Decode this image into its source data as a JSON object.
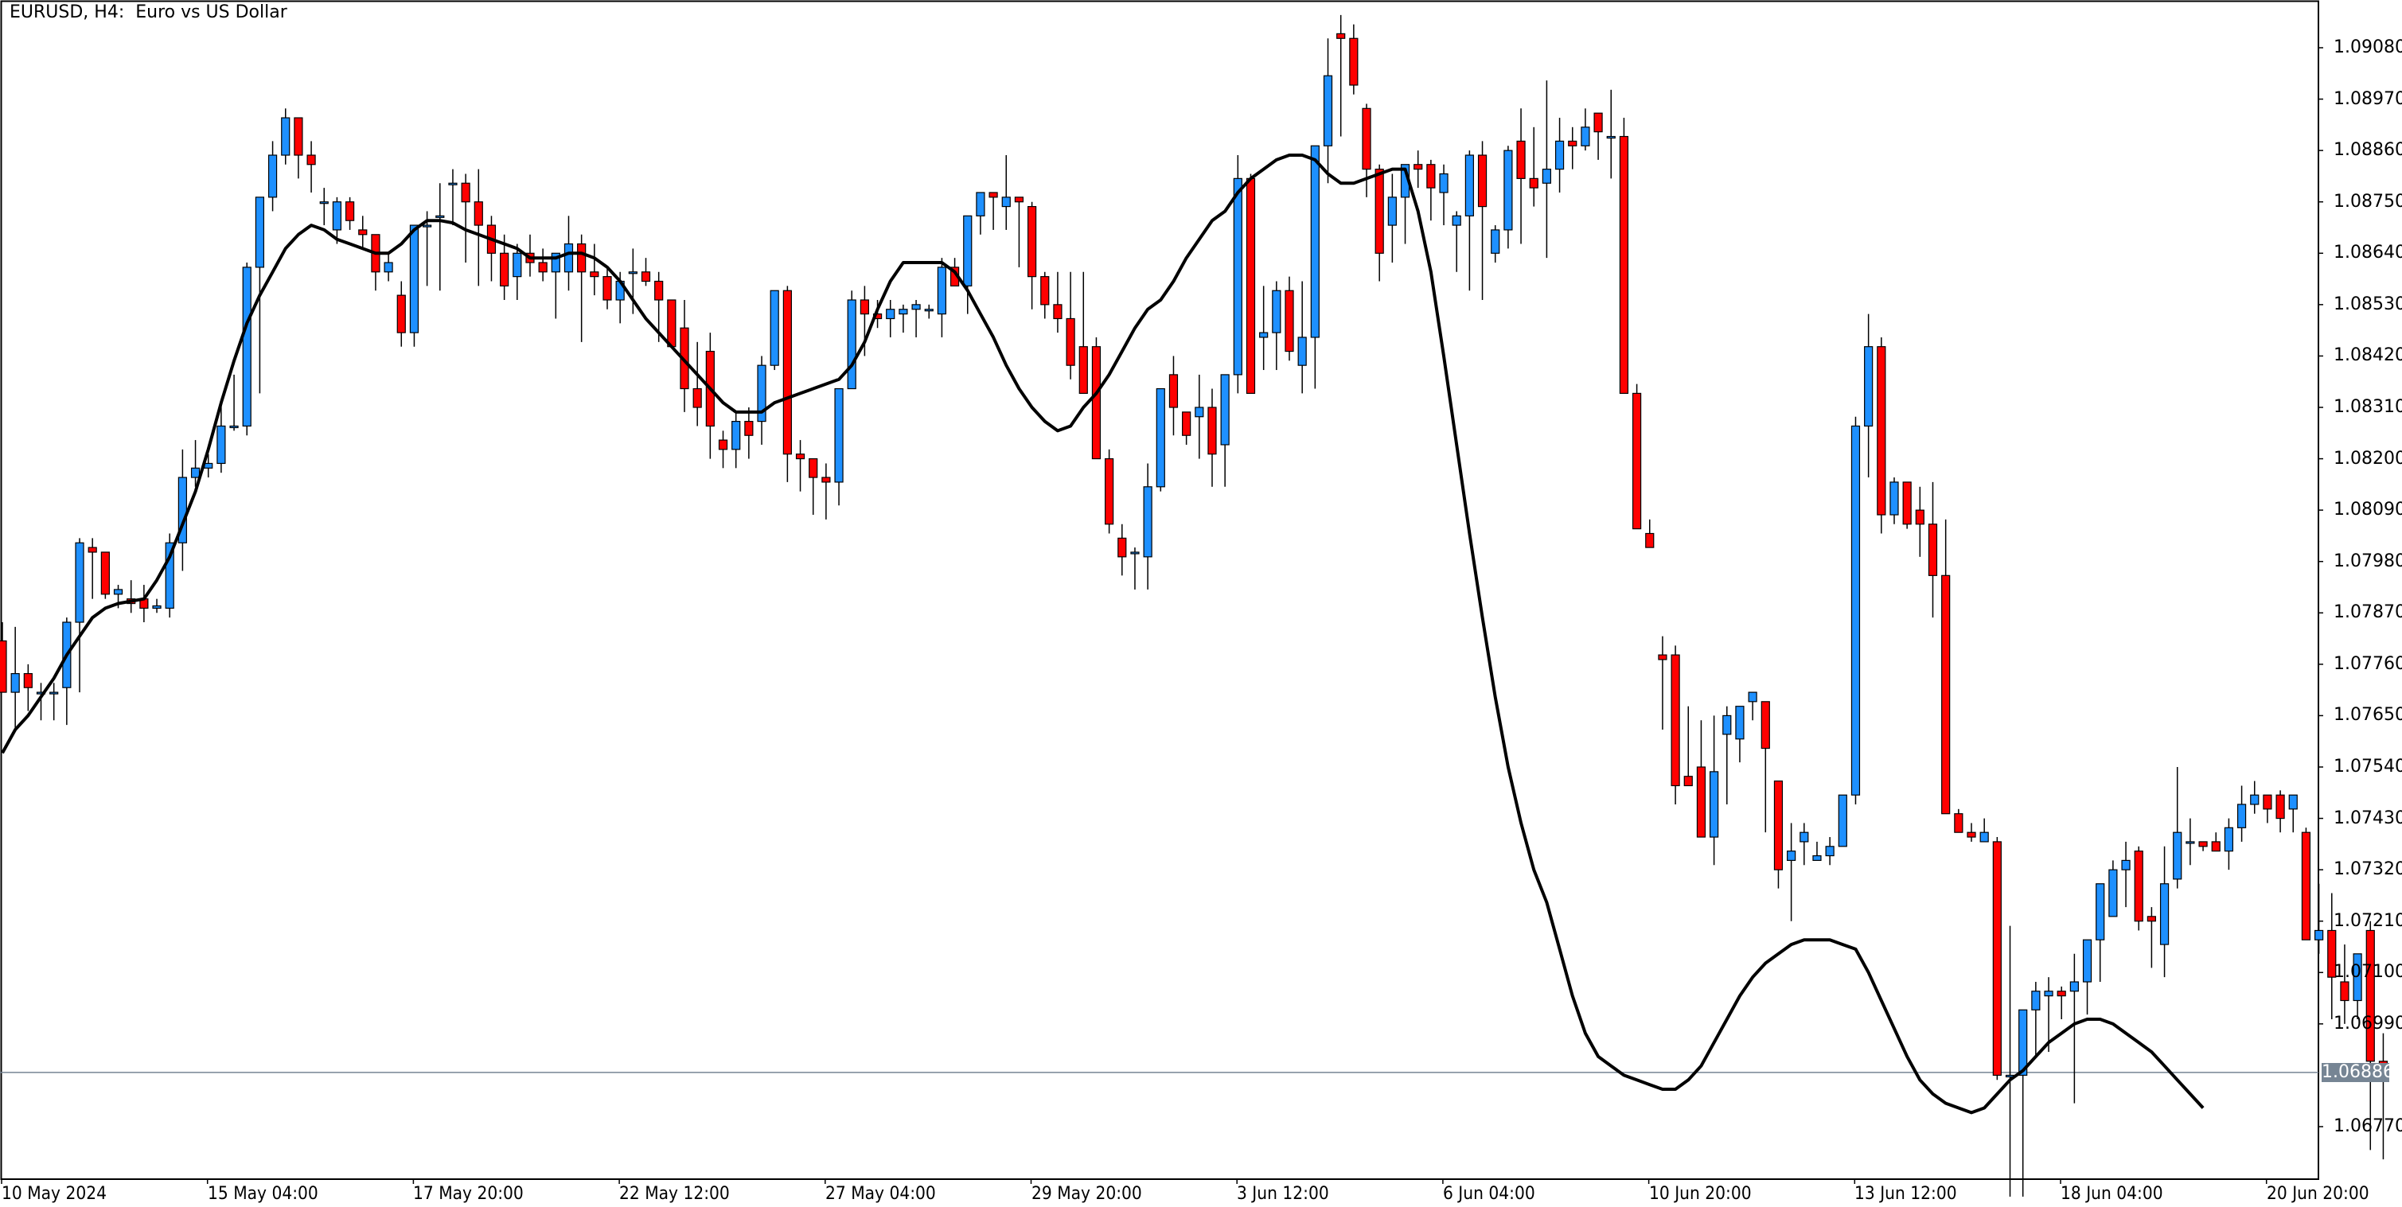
{
  "chart_data": {
    "type": "candlestick",
    "title": "EURUSD, H4:  Euro vs US Dollar",
    "symbol": "EURUSD",
    "timeframe": "H4",
    "description": "Euro vs US Dollar",
    "colors": {
      "bull": "#1E90FF",
      "bear": "#FF0000",
      "wick": "#000000",
      "ma_line": "#000000",
      "current_price_line": "#768594",
      "current_price_badge": "#768594",
      "background": "#FFFFFF"
    },
    "y_axis": {
      "ticks": [
        "1.09080",
        "1.08970",
        "1.08860",
        "1.08750",
        "1.08640",
        "1.08530",
        "1.08420",
        "1.08310",
        "1.08200",
        "1.08090",
        "1.07980",
        "1.07870",
        "1.07760",
        "1.07650",
        "1.07540",
        "1.07430",
        "1.07320",
        "1.07210",
        "1.07100",
        "1.06990",
        "1.06770"
      ],
      "ylim": [
        1.0663,
        1.0916
      ]
    },
    "x_axis": {
      "ticks": [
        "10 May 2024",
        "15 May 04:00",
        "17 May 20:00",
        "22 May 12:00",
        "27 May 04:00",
        "29 May 20:00",
        "3 Jun 12:00",
        "6 Jun 04:00",
        "10 Jun 20:00",
        "13 Jun 12:00",
        "18 Jun 04:00",
        "20 Jun 20:00"
      ]
    },
    "current_price": "1.06886",
    "indicator": {
      "type": "moving_average",
      "color": "#000000"
    },
    "candles": [
      [
        1.0781,
        1.0785,
        1.077,
        1.077
      ],
      [
        1.077,
        1.0784,
        1.0762,
        1.0774
      ],
      [
        1.0774,
        1.0776,
        1.0766,
        1.0771
      ],
      [
        1.077,
        1.0772,
        1.0764,
        1.077
      ],
      [
        1.077,
        1.0772,
        1.0764,
        1.077
      ],
      [
        1.0771,
        1.0786,
        1.0763,
        1.0785
      ],
      [
        1.0785,
        1.0803,
        1.077,
        1.0802
      ],
      [
        1.0801,
        1.0803,
        1.079,
        1.08
      ],
      [
        1.08,
        1.0791,
        1.079,
        1.0791
      ],
      [
        1.0791,
        1.0793,
        1.0788,
        1.0792
      ],
      [
        1.079,
        1.0794,
        1.0787,
        1.0789
      ],
      [
        1.079,
        1.0793,
        1.0785,
        1.0788
      ],
      [
        1.0788,
        1.079,
        1.0787,
        1.07885
      ],
      [
        1.0788,
        1.0804,
        1.0786,
        1.0802
      ],
      [
        1.0802,
        1.0822,
        1.0796,
        1.0816
      ],
      [
        1.0816,
        1.0824,
        1.0814,
        1.0818
      ],
      [
        1.0818,
        1.0821,
        1.0816,
        1.0819
      ],
      [
        1.0819,
        1.0832,
        1.0817,
        1.0827
      ],
      [
        1.0827,
        1.0838,
        1.0826,
        1.0827
      ],
      [
        1.0827,
        1.0862,
        1.0825,
        1.0861
      ],
      [
        1.0861,
        1.0876,
        1.0834,
        1.0876
      ],
      [
        1.0876,
        1.0888,
        1.0873,
        1.0885
      ],
      [
        1.0885,
        1.0895,
        1.0883,
        1.0893
      ],
      [
        1.0893,
        1.0893,
        1.088,
        1.0885
      ],
      [
        1.0885,
        1.0888,
        1.0877,
        1.0883
      ],
      [
        1.0875,
        1.0878,
        1.087,
        1.0875
      ],
      [
        1.0869,
        1.0876,
        1.0866,
        1.0875
      ],
      [
        1.0875,
        1.0876,
        1.0869,
        1.0871
      ],
      [
        1.0869,
        1.0872,
        1.0865,
        1.0868
      ],
      [
        1.0868,
        1.0865,
        1.0856,
        1.086
      ],
      [
        1.086,
        1.0864,
        1.0858,
        1.0862
      ],
      [
        1.0855,
        1.0858,
        1.0844,
        1.0847
      ],
      [
        1.0847,
        1.087,
        1.0844,
        1.087
      ],
      [
        1.087,
        1.0873,
        1.0857,
        1.087
      ],
      [
        1.0872,
        1.0879,
        1.0856,
        1.0872
      ],
      [
        1.0879,
        1.0882,
        1.087,
        1.0879
      ],
      [
        1.0879,
        1.0881,
        1.0862,
        1.0875
      ],
      [
        1.0875,
        1.0882,
        1.0857,
        1.087
      ],
      [
        1.087,
        1.0872,
        1.0858,
        1.0864
      ],
      [
        1.0864,
        1.0868,
        1.0854,
        1.0857
      ],
      [
        1.0859,
        1.0866,
        1.0854,
        1.0864
      ],
      [
        1.0864,
        1.0868,
        1.0859,
        1.0862
      ],
      [
        1.0862,
        1.0865,
        1.0858,
        1.086
      ],
      [
        1.086,
        1.0862,
        1.085,
        1.0864
      ],
      [
        1.086,
        1.0872,
        1.0856,
        1.0866
      ],
      [
        1.0866,
        1.0868,
        1.0845,
        1.086
      ],
      [
        1.086,
        1.0866,
        1.0855,
        1.0859
      ],
      [
        1.0859,
        1.0861,
        1.0852,
        1.0854
      ],
      [
        1.0854,
        1.086,
        1.0849,
        1.0858
      ],
      [
        1.086,
        1.0865,
        1.0851,
        1.086
      ],
      [
        1.086,
        1.0863,
        1.0857,
        1.0858
      ],
      [
        1.0858,
        1.086,
        1.0845,
        1.0854
      ],
      [
        1.0854,
        1.0852,
        1.0846,
        1.0844
      ],
      [
        1.0848,
        1.0854,
        1.083,
        1.0835
      ],
      [
        1.0835,
        1.0845,
        1.0827,
        1.0831
      ],
      [
        1.0843,
        1.0847,
        1.082,
        1.0827
      ],
      [
        1.0824,
        1.0826,
        1.0818,
        1.0822
      ],
      [
        1.0822,
        1.083,
        1.0818,
        1.0828
      ],
      [
        1.0828,
        1.0831,
        1.082,
        1.0825
      ],
      [
        1.0828,
        1.0842,
        1.0823,
        1.084
      ],
      [
        1.084,
        1.0856,
        1.0839,
        1.0856
      ],
      [
        1.0856,
        1.0857,
        1.0815,
        1.0821
      ],
      [
        1.0821,
        1.0824,
        1.0813,
        1.082
      ],
      [
        1.082,
        1.0815,
        1.0808,
        1.0816
      ],
      [
        1.0816,
        1.0819,
        1.0807,
        1.0815
      ],
      [
        1.0815,
        1.0835,
        1.081,
        1.0835
      ],
      [
        1.0835,
        1.0856,
        1.0835,
        1.0854
      ],
      [
        1.0854,
        1.0857,
        1.0842,
        1.0851
      ],
      [
        1.0851,
        1.0854,
        1.0848,
        1.085
      ],
      [
        1.085,
        1.0854,
        1.0846,
        1.0852
      ],
      [
        1.0851,
        1.0853,
        1.0847,
        1.0852
      ],
      [
        1.0852,
        1.0854,
        1.0846,
        1.0853
      ],
      [
        1.0852,
        1.0853,
        1.085,
        1.0852
      ],
      [
        1.0851,
        1.0863,
        1.0846,
        1.0861
      ],
      [
        1.0861,
        1.0863,
        1.0858,
        1.0857
      ],
      [
        1.0857,
        1.0872,
        1.0851,
        1.0872
      ],
      [
        1.0872,
        1.0876,
        1.0868,
        1.0877
      ],
      [
        1.0877,
        1.0876,
        1.0869,
        1.0876
      ],
      [
        1.0874,
        1.0885,
        1.0869,
        1.0876
      ],
      [
        1.0876,
        1.0875,
        1.0861,
        1.0875
      ],
      [
        1.0874,
        1.0875,
        1.0852,
        1.0859
      ],
      [
        1.0859,
        1.086,
        1.085,
        1.0853
      ],
      [
        1.0853,
        1.086,
        1.0847,
        1.085
      ],
      [
        1.085,
        1.086,
        1.0837,
        1.084
      ],
      [
        1.0844,
        1.086,
        1.0836,
        1.0834
      ],
      [
        1.0844,
        1.0846,
        1.082,
        1.082
      ],
      [
        1.082,
        1.0822,
        1.0804,
        1.0806
      ],
      [
        1.0803,
        1.0806,
        1.0795,
        1.0799
      ],
      [
        1.08,
        1.0801,
        1.0792,
        1.08
      ],
      [
        1.0799,
        1.0819,
        1.0792,
        1.0814
      ],
      [
        1.0814,
        1.0831,
        1.0813,
        1.0835
      ],
      [
        1.0838,
        1.0842,
        1.0825,
        1.0831
      ],
      [
        1.083,
        1.083,
        1.0823,
        1.0825
      ],
      [
        1.0829,
        1.0838,
        1.082,
        1.0831
      ],
      [
        1.0831,
        1.0835,
        1.0814,
        1.0821
      ],
      [
        1.0823,
        1.0838,
        1.0814,
        1.0838
      ],
      [
        1.0838,
        1.0885,
        1.0834,
        1.088
      ],
      [
        1.088,
        1.0881,
        1.0836,
        1.0834
      ],
      [
        1.0846,
        1.0857,
        1.0839,
        1.0847
      ],
      [
        1.0847,
        1.0858,
        1.0839,
        1.0856
      ],
      [
        1.0856,
        1.0859,
        1.0841,
        1.0843
      ],
      [
        1.084,
        1.0858,
        1.0834,
        1.0846
      ],
      [
        1.0846,
        1.0887,
        1.0835,
        1.0887
      ],
      [
        1.0887,
        1.091,
        1.0879,
        1.0902
      ],
      [
        1.0911,
        1.0915,
        1.0889,
        1.091
      ],
      [
        1.091,
        1.0913,
        1.0898,
        1.09
      ],
      [
        1.0895,
        1.0896,
        1.0876,
        1.0882
      ],
      [
        1.0882,
        1.0883,
        1.0858,
        1.0864
      ],
      [
        1.087,
        1.0881,
        1.0862,
        1.0876
      ],
      [
        1.0876,
        1.0883,
        1.0866,
        1.0883
      ],
      [
        1.0883,
        1.0886,
        1.0878,
        1.0882
      ],
      [
        1.0883,
        1.0884,
        1.0871,
        1.0878
      ],
      [
        1.0877,
        1.0883,
        1.087,
        1.0881
      ],
      [
        1.087,
        1.0873,
        1.086,
        1.0872
      ],
      [
        1.0872,
        1.0886,
        1.0856,
        1.0885
      ],
      [
        1.0885,
        1.0888,
        1.0854,
        1.0874
      ],
      [
        1.0864,
        1.087,
        1.0862,
        1.0869
      ],
      [
        1.0869,
        1.0887,
        1.0865,
        1.0886
      ],
      [
        1.0888,
        1.0895,
        1.0866,
        1.088
      ],
      [
        1.088,
        1.0891,
        1.0874,
        1.0878
      ],
      [
        1.0879,
        1.0901,
        1.0863,
        1.0882
      ],
      [
        1.0882,
        1.0893,
        1.0877,
        1.0888
      ],
      [
        1.0888,
        1.0891,
        1.0882,
        1.0887
      ],
      [
        1.0887,
        1.0895,
        1.0886,
        1.0891
      ],
      [
        1.0894,
        1.0894,
        1.0884,
        1.089
      ],
      [
        1.0889,
        1.0899,
        1.088,
        1.0889
      ],
      [
        1.0889,
        1.0893,
        1.0838,
        1.0834
      ],
      [
        1.0834,
        1.0836,
        1.0805,
        1.0805
      ],
      [
        1.0804,
        1.0807,
        1.0803,
        1.0801
      ],
      [
        1.0778,
        1.0782,
        1.0762,
        1.0777
      ],
      [
        1.0778,
        1.078,
        1.0746,
        1.075
      ],
      [
        1.0752,
        1.0767,
        1.075,
        1.075
      ],
      [
        1.0754,
        1.0764,
        1.0739,
        1.0739
      ],
      [
        1.0739,
        1.0765,
        1.0733,
        1.0753
      ],
      [
        1.0761,
        1.0767,
        1.0746,
        1.0765
      ],
      [
        1.076,
        1.0764,
        1.0755,
        1.0767
      ],
      [
        1.0768,
        1.077,
        1.0764,
        1.077
      ],
      [
        1.0768,
        1.0764,
        1.074,
        1.0758
      ],
      [
        1.0751,
        1.075,
        1.0728,
        1.0732
      ],
      [
        1.0734,
        1.0742,
        1.0721,
        1.0736
      ],
      [
        1.0738,
        1.0742,
        1.0733,
        1.074
      ],
      [
        1.0734,
        1.0738,
        1.0734,
        1.0735
      ],
      [
        1.0735,
        1.0739,
        1.0733,
        1.0737
      ],
      [
        1.0737,
        1.0748,
        1.0737,
        1.0748
      ],
      [
        1.0748,
        1.0829,
        1.0746,
        1.0827
      ],
      [
        1.0827,
        1.0851,
        1.0816,
        1.0844
      ],
      [
        1.0844,
        1.0846,
        1.0804,
        1.0808
      ],
      [
        1.0808,
        1.0816,
        1.0806,
        1.0815
      ],
      [
        1.0815,
        1.0815,
        1.0805,
        1.0806
      ],
      [
        1.0809,
        1.0814,
        1.0799,
        1.0806
      ],
      [
        1.0806,
        1.0815,
        1.0786,
        1.0795
      ],
      [
        1.0795,
        1.0807,
        1.0777,
        1.0744
      ],
      [
        1.0744,
        1.0745,
        1.074,
        1.074
      ],
      [
        1.074,
        1.0742,
        1.0738,
        1.0739
      ],
      [
        1.0738,
        1.0743,
        1.0738,
        1.074
      ],
      [
        1.0738,
        1.0739,
        1.0687,
        1.0688
      ],
      [
        1.0688,
        1.072,
        1.0662,
        1.0688
      ],
      [
        1.0688,
        1.0702,
        1.0662,
        1.0702
      ],
      [
        1.0702,
        1.0708,
        1.0692,
        1.0706
      ],
      [
        1.0705,
        1.0709,
        1.0693,
        1.0706
      ],
      [
        1.0706,
        1.0707,
        1.07,
        1.0705
      ],
      [
        1.0706,
        1.0714,
        1.0682,
        1.0708
      ],
      [
        1.0708,
        1.0715,
        1.0701,
        1.0717
      ],
      [
        1.0717,
        1.072,
        1.0708,
        1.0729
      ],
      [
        1.0722,
        1.0734,
        1.0724,
        1.0732
      ],
      [
        1.0732,
        1.0738,
        1.0724,
        1.0734
      ],
      [
        1.0736,
        1.0737,
        1.0719,
        1.0721
      ],
      [
        1.0722,
        1.0724,
        1.0711,
        1.0721
      ],
      [
        1.0716,
        1.0737,
        1.0709,
        1.0729
      ],
      [
        1.073,
        1.0754,
        1.0728,
        1.074
      ],
      [
        1.0738,
        1.0743,
        1.0733,
        1.0738
      ],
      [
        1.0738,
        1.0738,
        1.0736,
        1.0737
      ],
      [
        1.0738,
        1.074,
        1.0737,
        1.0736
      ],
      [
        1.0736,
        1.0743,
        1.0732,
        1.0741
      ],
      [
        1.0741,
        1.075,
        1.0738,
        1.0746
      ],
      [
        1.0746,
        1.0751,
        1.0744,
        1.0748
      ],
      [
        1.0748,
        1.0747,
        1.0742,
        1.0745
      ],
      [
        1.0748,
        1.0749,
        1.074,
        1.0743
      ],
      [
        1.0745,
        1.0746,
        1.074,
        1.0748
      ],
      [
        1.074,
        1.0741,
        1.0717,
        1.0717
      ],
      [
        1.0717,
        1.0729,
        1.0714,
        1.0719
      ],
      [
        1.0719,
        1.0727,
        1.07,
        1.0709
      ],
      [
        1.0708,
        1.0716,
        1.0699,
        1.0704
      ],
      [
        1.0704,
        1.0711,
        1.07,
        1.0714
      ],
      [
        1.0719,
        1.0721,
        1.0672,
        1.0691
      ],
      [
        1.0691,
        1.0697,
        1.067,
        1.0688
      ]
    ],
    "ma": [
      1.0757,
      1.0762,
      1.0765,
      1.0769,
      1.0773,
      1.0778,
      1.0782,
      1.0786,
      1.0788,
      1.0789,
      1.07895,
      1.079,
      1.0794,
      1.0799,
      1.0806,
      1.0813,
      1.0822,
      1.0832,
      1.0841,
      1.0849,
      1.0855,
      1.086,
      1.0865,
      1.0868,
      1.087,
      1.0869,
      1.0867,
      1.0866,
      1.0865,
      1.0864,
      1.0864,
      1.0866,
      1.0869,
      1.0871,
      1.0871,
      1.08705,
      1.0869,
      1.0868,
      1.0867,
      1.0866,
      1.0865,
      1.0863,
      1.0863,
      1.0863,
      1.0864,
      1.0864,
      1.0863,
      1.0861,
      1.0858,
      1.0854,
      1.085,
      1.0847,
      1.0844,
      1.0841,
      1.0838,
      1.0835,
      1.0832,
      1.083,
      1.083,
      1.083,
      1.0832,
      1.0833,
      1.0834,
      1.0835,
      1.0836,
      1.0837,
      1.084,
      1.0845,
      1.0852,
      1.0858,
      1.0862,
      1.0862,
      1.0862,
      1.0862,
      1.086,
      1.0856,
      1.0851,
      1.0846,
      1.084,
      1.0835,
      1.0831,
      1.0828,
      1.0826,
      1.0827,
      1.0831,
      1.0834,
      1.0838,
      1.0843,
      1.0848,
      1.0852,
      1.0854,
      1.0858,
      1.0863,
      1.0867,
      1.0871,
      1.0873,
      1.0877,
      1.088,
      1.0882,
      1.0884,
      1.0885,
      1.0885,
      1.0884,
      1.0881,
      1.0879,
      1.0879,
      1.088,
      1.0881,
      1.0882,
      1.0882,
      1.0873,
      1.086,
      1.0842,
      1.0823,
      1.0804,
      1.0786,
      1.0769,
      1.0754,
      1.0742,
      1.0732,
      1.0725,
      1.0715,
      1.0705,
      1.0697,
      1.0692,
      1.069,
      1.0688,
      1.0687,
      1.0686,
      1.0685,
      1.0685,
      1.0687,
      1.069,
      1.0695,
      1.07,
      1.0705,
      1.0709,
      1.0712,
      1.0714,
      1.0716,
      1.0717,
      1.0717,
      1.0717,
      1.0716,
      1.0715,
      1.071,
      1.0704,
      1.0698,
      1.0692,
      1.0687,
      1.0684,
      1.0682,
      1.0681,
      1.068,
      1.0681,
      1.0684,
      1.0687,
      1.0689,
      1.0692,
      1.0695,
      1.0697,
      1.0699,
      1.07,
      1.07,
      1.0699,
      1.0697,
      1.0695,
      1.0693,
      1.069,
      1.0687,
      1.0684,
      1.0681
    ]
  },
  "header": {
    "title": "EURUSD, H4:  Euro vs US Dollar"
  },
  "axis": {
    "prices": [
      "1.09080",
      "1.08970",
      "1.08860",
      "1.08750",
      "1.08640",
      "1.08530",
      "1.08420",
      "1.08310",
      "1.08200",
      "1.08090",
      "1.07980",
      "1.07870",
      "1.07760",
      "1.07650",
      "1.07540",
      "1.07430",
      "1.07320",
      "1.07210",
      "1.07100",
      "1.06990",
      "1.06770"
    ],
    "times": [
      "10 May 2024",
      "15 May 04:00",
      "17 May 20:00",
      "22 May 12:00",
      "27 May 04:00",
      "29 May 20:00",
      "3 Jun 12:00",
      "6 Jun 04:00",
      "10 Jun 20:00",
      "13 Jun 12:00",
      "18 Jun 04:00",
      "20 Jun 20:00"
    ],
    "current_price": "1.06886"
  }
}
